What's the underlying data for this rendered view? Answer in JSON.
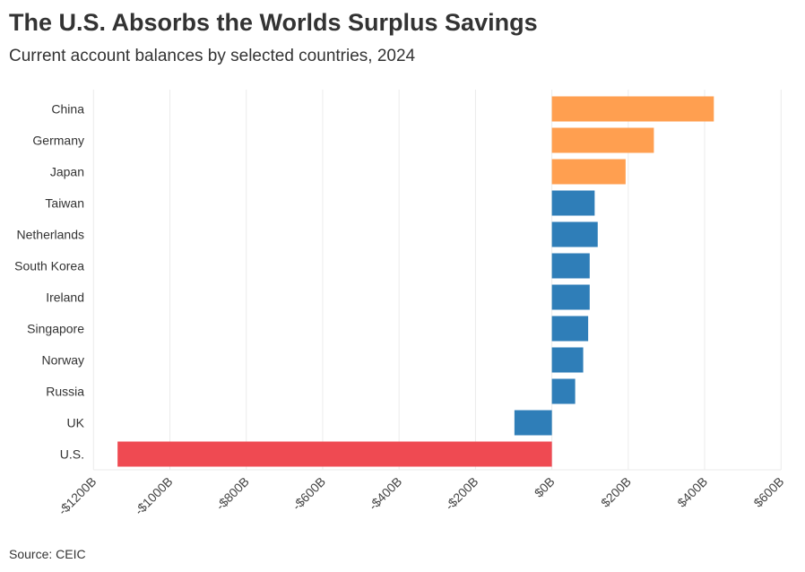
{
  "title": "The U.S. Absorbs the Worlds Surplus Savings",
  "subtitle": "Current account balances by selected countries, 2024",
  "source": "Source: CEIC",
  "colors": {
    "surplus_major": "#FF9F50",
    "other": "#2F7EB8",
    "us": "#EF4A52",
    "grid": "#EBEBEB"
  },
  "chart_data": {
    "type": "bar",
    "orientation": "horizontal",
    "title": "The U.S. Absorbs the Worlds Surplus Savings",
    "subtitle": "Current account balances by selected countries, 2024",
    "xlabel": "",
    "ylabel": "",
    "unit": "USD billions",
    "xlim": [
      -1200,
      600
    ],
    "grid": true,
    "categories": [
      "China",
      "Germany",
      "Japan",
      "Taiwan",
      "Netherlands",
      "South Korea",
      "Ireland",
      "Singapore",
      "Norway",
      "Russia",
      "UK",
      "U.S."
    ],
    "values": [
      424,
      267,
      193,
      112,
      120,
      99,
      99,
      95,
      82,
      61,
      -98,
      -1137
    ],
    "color_groups": [
      "surplus_major",
      "surplus_major",
      "surplus_major",
      "other",
      "other",
      "other",
      "other",
      "other",
      "other",
      "other",
      "other",
      "us"
    ],
    "ticks": [
      -1200,
      -1000,
      -800,
      -600,
      -400,
      -200,
      0,
      200,
      400,
      600
    ],
    "tick_labels": [
      "-$1200B",
      "-$1000B",
      "-$800B",
      "-$600B",
      "-$400B",
      "-$200B",
      "$0B",
      "$200B",
      "$400B",
      "$600B"
    ]
  }
}
